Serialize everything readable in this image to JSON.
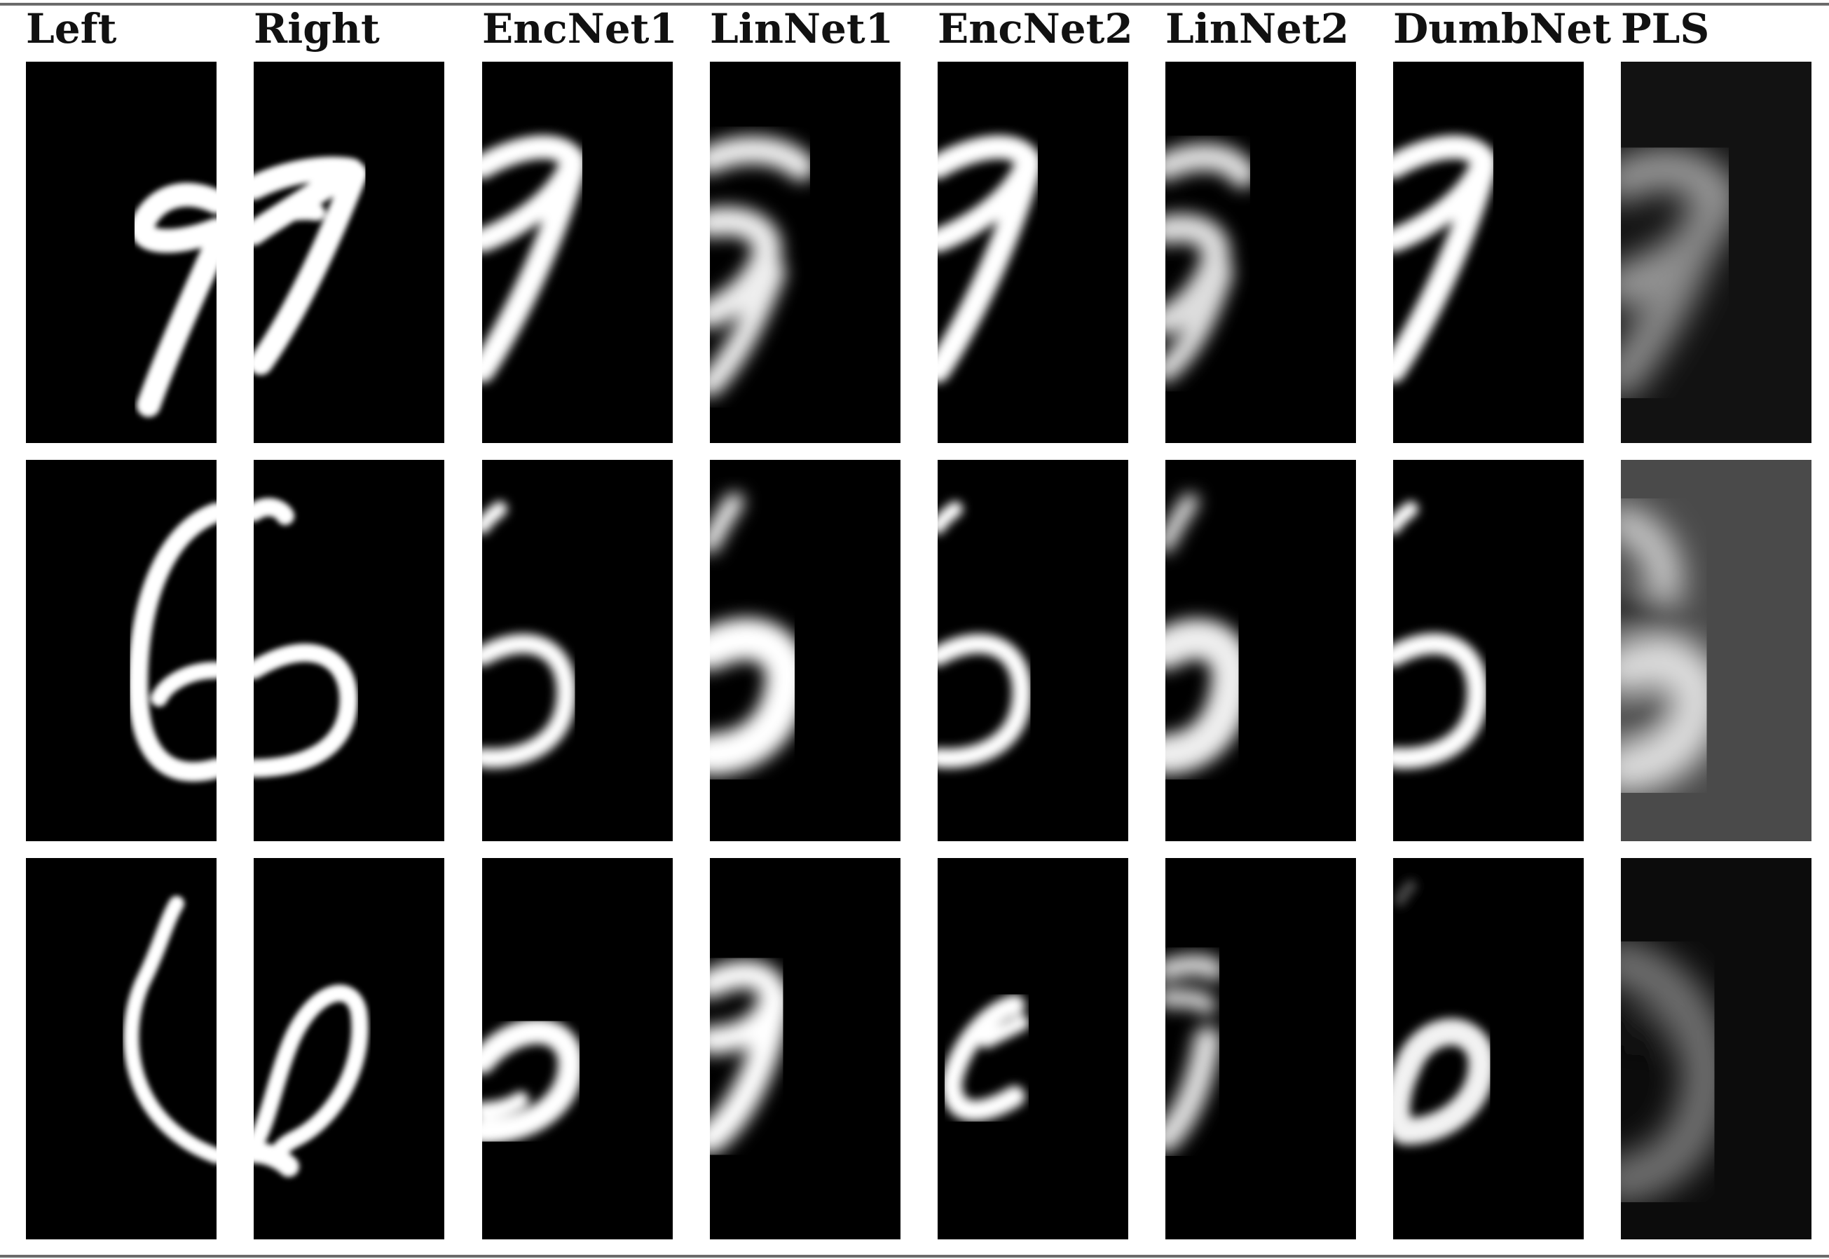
{
  "figure": {
    "columns": [
      {
        "key": "left",
        "label": "Left"
      },
      {
        "key": "right",
        "label": "Right"
      },
      {
        "key": "encnet1",
        "label": "EncNet1"
      },
      {
        "key": "linnet1",
        "label": "LinNet1"
      },
      {
        "key": "encnet2",
        "label": "EncNet2"
      },
      {
        "key": "linnet2",
        "label": "LinNet2"
      },
      {
        "key": "dumbnet",
        "label": "DumbNet"
      },
      {
        "key": "pls",
        "label": "PLS"
      }
    ],
    "rows": [
      {
        "digit": "9"
      },
      {
        "digit": "6"
      },
      {
        "digit": "6"
      }
    ],
    "colors": {
      "tile_background": "#000000",
      "stroke": "#ffffff",
      "rule": "#6b6b6b"
    }
  }
}
